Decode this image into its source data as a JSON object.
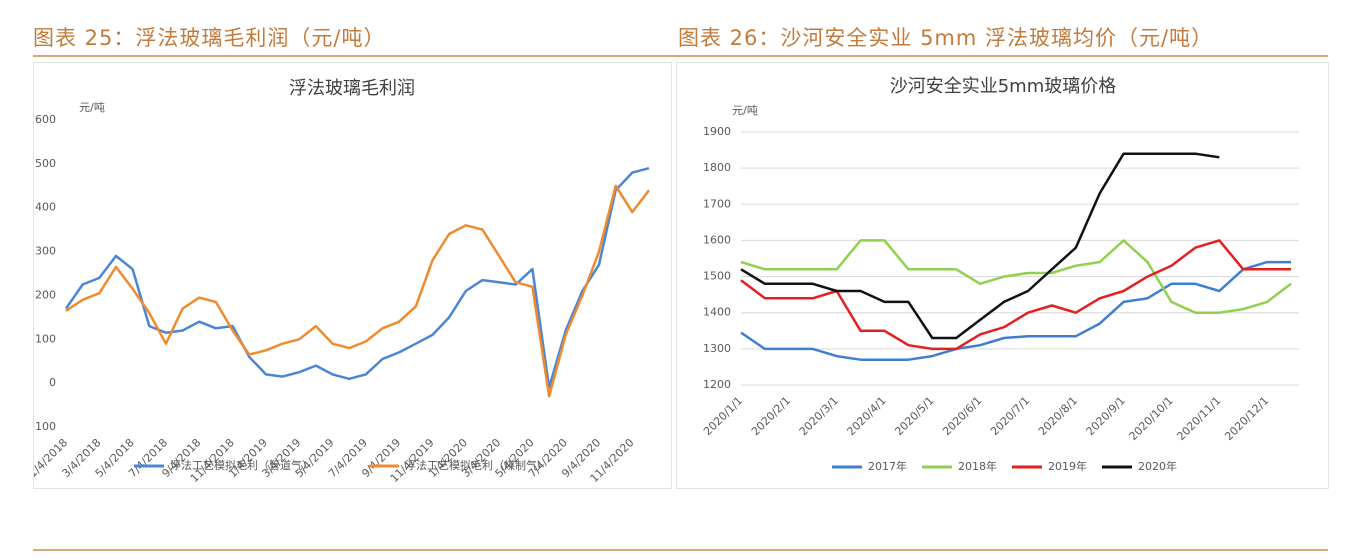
{
  "captions": [
    "图表 25：浮法玻璃毛利润（元/吨）",
    "图表 26：沙河安全实业 5mm 浮法玻璃均价（元/吨）"
  ],
  "chart_data": [
    {
      "type": "line",
      "title": "浮法玻璃毛利润",
      "y_label": "元/吨",
      "categories": [
        "1/4/2018",
        null,
        "3/4/2018",
        null,
        "5/4/2018",
        null,
        "7/4/2018",
        null,
        "9/4/2018",
        null,
        "11/4/2018",
        null,
        "1/4/2019",
        null,
        "3/4/2019",
        null,
        "5/4/2019",
        null,
        "7/4/2019",
        null,
        "9/4/2019",
        null,
        "11/4/2019",
        null,
        "1/4/2020",
        null,
        "3/4/2020",
        null,
        "5/4/2020",
        null,
        "7/4/2020",
        null,
        "9/4/2020",
        null,
        "11/4/2020",
        null
      ],
      "series": [
        {
          "name": "浮法工艺模拟毛利（管道气）",
          "color": "#4a86d4",
          "values": [
            170,
            225,
            240,
            290,
            260,
            130,
            115,
            120,
            140,
            125,
            130,
            60,
            20,
            15,
            25,
            40,
            20,
            10,
            20,
            55,
            70,
            90,
            110,
            150,
            210,
            235,
            230,
            225,
            260,
            -10,
            120,
            210,
            270,
            440,
            480,
            490
          ]
        },
        {
          "name": "浮法工艺模拟毛利（煤制气）",
          "color": "#ef8a2e",
          "values": [
            165,
            190,
            205,
            265,
            215,
            160,
            90,
            170,
            195,
            185,
            120,
            65,
            75,
            90,
            100,
            130,
            90,
            80,
            95,
            125,
            140,
            175,
            280,
            340,
            360,
            350,
            290,
            230,
            220,
            -30,
            110,
            200,
            300,
            450,
            390,
            440
          ]
        }
      ],
      "ylim": [
        -100,
        600
      ],
      "yticks": [
        -100,
        0,
        100,
        200,
        300,
        400,
        500,
        600
      ],
      "grid": false
    },
    {
      "type": "line",
      "title": "沙河安全实业5mm玻璃价格",
      "y_label": "元/吨",
      "categories": [
        "2020/1/1",
        null,
        "2020/2/1",
        null,
        "2020/3/1",
        null,
        "2020/4/1",
        null,
        "2020/5/1",
        null,
        "2020/6/1",
        null,
        "2020/7/1",
        null,
        "2020/8/1",
        null,
        "2020/9/1",
        null,
        "2020/10/1",
        null,
        "2020/11/1",
        null,
        "2020/12/1",
        null
      ],
      "series": [
        {
          "name": "2017年",
          "color": "#3f7fd0",
          "values": [
            1345,
            1300,
            1300,
            1300,
            1280,
            1270,
            1270,
            1270,
            1280,
            1300,
            1310,
            1330,
            1335,
            1335,
            1335,
            1370,
            1430,
            1440,
            1480,
            1480,
            1460,
            1520,
            1540,
            1540
          ]
        },
        {
          "name": "2018年",
          "color": "#8fd14f",
          "values": [
            1540,
            1520,
            1520,
            1520,
            1520,
            1600,
            1600,
            1520,
            1520,
            1520,
            1480,
            1500,
            1510,
            1510,
            1530,
            1540,
            1600,
            1540,
            1430,
            1400,
            1400,
            1410,
            1430,
            1480
          ]
        },
        {
          "name": "2019年",
          "color": "#e41f1f",
          "values": [
            1490,
            1440,
            1440,
            1440,
            1460,
            1350,
            1350,
            1310,
            1300,
            1300,
            1340,
            1360,
            1400,
            1420,
            1400,
            1440,
            1460,
            1500,
            1530,
            1580,
            1600,
            1520,
            1520,
            1520
          ]
        },
        {
          "name": "2020年",
          "color": "#111111",
          "values": [
            1520,
            1480,
            1480,
            1480,
            1460,
            1460,
            1430,
            1430,
            1330,
            1330,
            1380,
            1430,
            1460,
            1520,
            1580,
            1730,
            1840,
            1840,
            1840,
            1840,
            1830,
            null,
            null,
            null
          ]
        }
      ],
      "ylim": [
        1200,
        1900
      ],
      "yticks": [
        1200,
        1300,
        1400,
        1500,
        1600,
        1700,
        1800,
        1900
      ],
      "grid": true
    }
  ]
}
